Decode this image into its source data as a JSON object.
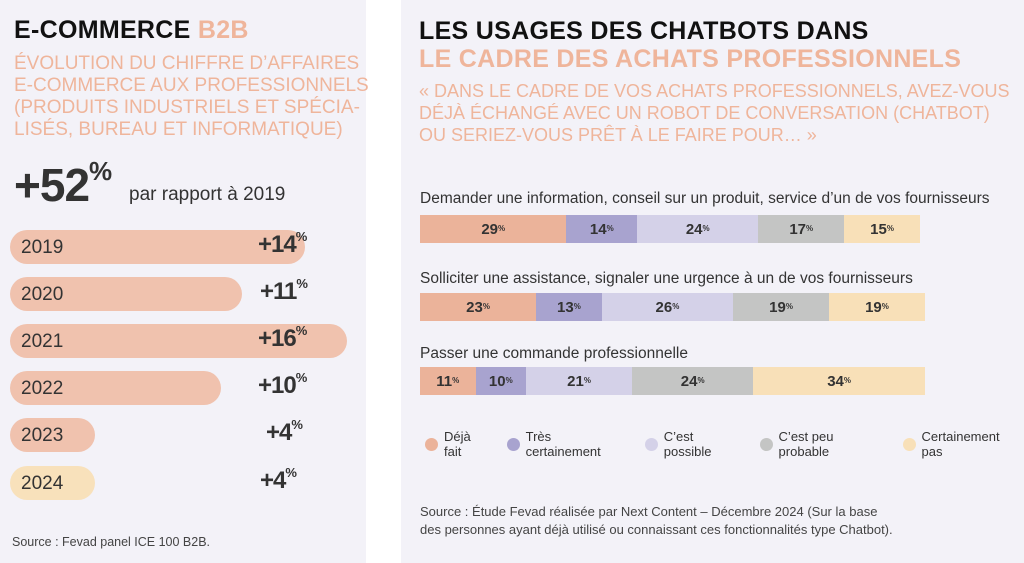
{
  "left": {
    "title": "E-COMMERCE",
    "title_accent": "B2B",
    "subtitle": [
      "ÉVOLUTION DU CHIFFRE D’AFFAIRES",
      "E-COMMERCE AUX PROFESSIONNELS",
      "(PRODUITS INDUSTRIELS ET SPÉCIA-",
      "LISÉS, BUREAU ET INFORMATIQUE)"
    ],
    "headline_value": "+52",
    "headline_unit": "%",
    "headline_text": "par rapport à 2019",
    "source": "Source : Fevad panel ICE 100 B2B."
  },
  "right": {
    "title": "LES USAGES DES CHATBOTS DANS",
    "title_accent": "LE CADRE DES ACHATS PROFESSIONNELS",
    "question": [
      "« DANS LE CADRE DE VOS ACHATS PROFESSIONNELS, AVEZ-VOUS",
      "DÉJÀ ÉCHANGÉ AVEC UN ROBOT DE CONVERSATION (CHATBOT)",
      "OU SERIEZ-VOUS PRÊT À LE FAIRE POUR… »"
    ],
    "source": [
      "Source : Étude Fevad réalisée par Next Content – Décembre 2024 (Sur la base",
      "des personnes ayant déjà utilisé ou connaissant ces fonctionnalités type Chatbot)."
    ]
  },
  "chart_data": [
    {
      "type": "bar",
      "orientation": "horizontal",
      "categories": [
        "2019",
        "2020",
        "2021",
        "2022",
        "2023",
        "2024"
      ],
      "values": [
        14,
        11,
        16,
        10,
        4,
        4
      ],
      "value_labels": [
        "+14",
        "+11",
        "+16",
        "+10",
        "+4",
        "+4"
      ],
      "unit": "%",
      "colors": [
        "#f0c2ae",
        "#f0c2ae",
        "#f0c2ae",
        "#f0c2ae",
        "#f0c2ae",
        "#f8e1bb"
      ]
    },
    {
      "type": "bar",
      "orientation": "horizontal",
      "stacked": true,
      "unit": "%",
      "categories": [
        "Demander une information, conseil sur un produit, service d’un de vos fournisseurs",
        "Solliciter une assistance, signaler une urgence à un de vos fournisseurs",
        "Passer une commande professionnelle"
      ],
      "series": [
        {
          "name": "Déjà fait",
          "color": "#ebb39a",
          "values": [
            29,
            23,
            11
          ]
        },
        {
          "name": "Très certainement",
          "color": "#a8a3cf",
          "values": [
            14,
            13,
            10
          ]
        },
        {
          "name": "C’est possible",
          "color": "#d4d1e8",
          "values": [
            24,
            26,
            21
          ]
        },
        {
          "name": "C’est peu probable",
          "color": "#c4c5c4",
          "values": [
            17,
            19,
            24
          ]
        },
        {
          "name": "Certainement pas",
          "color": "#f8e0b8",
          "values": [
            15,
            19,
            34
          ]
        }
      ],
      "legend": "bottom"
    }
  ]
}
